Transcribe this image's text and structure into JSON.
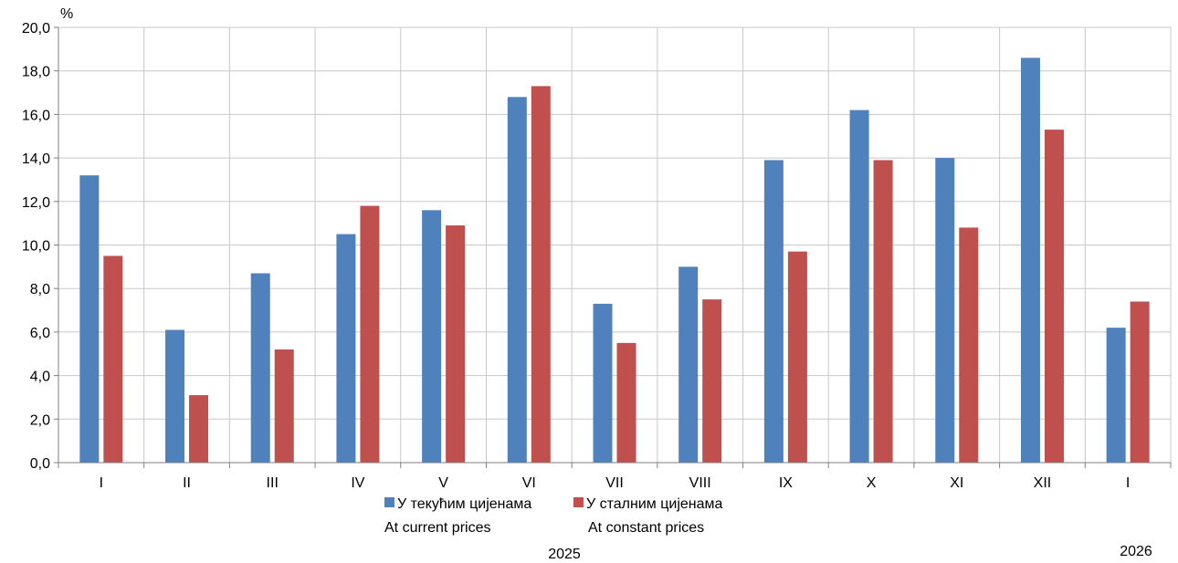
{
  "chart_data": {
    "type": "bar",
    "unit": "%",
    "categories": [
      "I",
      "II",
      "III",
      "IV",
      "V",
      "VI",
      "VII",
      "VIII",
      "IX",
      "X",
      "XI",
      "XII",
      "I"
    ],
    "series": [
      {
        "name_line1": "У текућим цијенама",
        "name_line2": "At current prices",
        "color": "#4f81bd",
        "values": [
          13.2,
          6.1,
          8.7,
          10.5,
          11.6,
          16.8,
          7.3,
          9.0,
          13.9,
          16.2,
          14.0,
          18.6,
          6.2
        ]
      },
      {
        "name_line1": "У сталним цијенама",
        "name_line2": "At constant prices",
        "color": "#c0504d",
        "values": [
          9.5,
          3.1,
          5.2,
          11.8,
          10.9,
          17.3,
          5.5,
          7.5,
          9.7,
          13.9,
          10.8,
          15.3,
          7.4
        ]
      }
    ],
    "ylim": [
      0,
      20
    ],
    "ytick_labels": [
      "0,0",
      "2,0",
      "4,0",
      "6,0",
      "8,0",
      "10,0",
      "12,0",
      "14,0",
      "16,0",
      "18,0",
      "20,0"
    ],
    "grid": true,
    "legend_position": "bottom",
    "year_labels": {
      "first": "2025",
      "second": "2026"
    }
  }
}
